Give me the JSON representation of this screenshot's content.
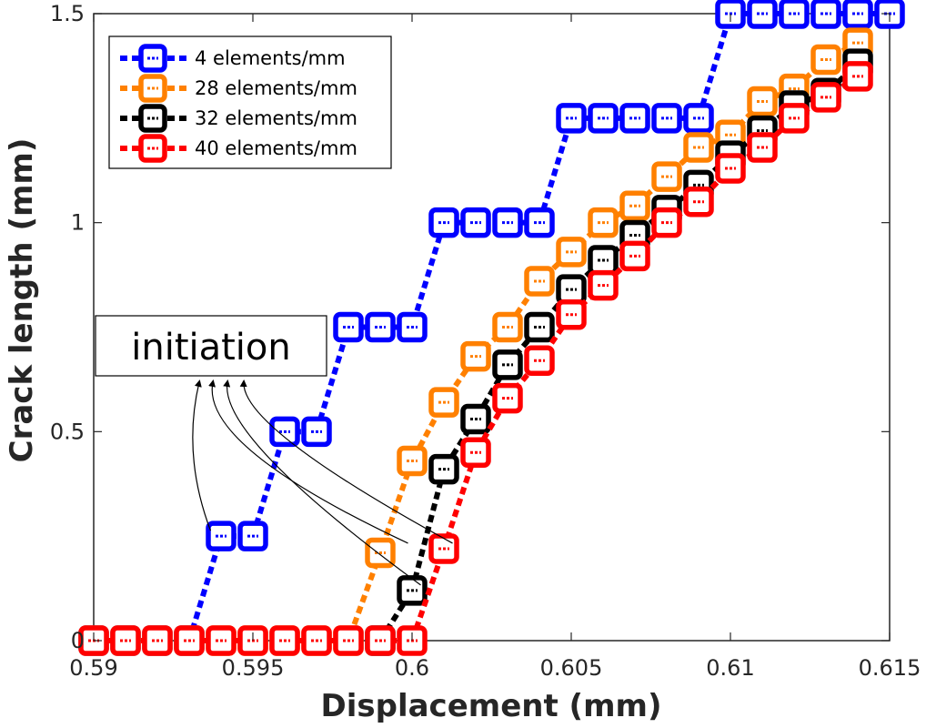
{
  "chart_data": {
    "type": "line",
    "xlabel": "Displacement (mm)",
    "ylabel": "Crack length (mm)",
    "xlim": [
      0.59,
      0.615
    ],
    "ylim": [
      0,
      1.5
    ],
    "xticks": [
      "0.59",
      "0.595",
      "0.6",
      "0.605",
      "0.61",
      "0.615"
    ],
    "yticks": [
      "0",
      "0.5",
      "1",
      "1.5"
    ],
    "legend_position": "top-left",
    "grid": false,
    "series": [
      {
        "name": "4 elements/mm",
        "color": "#0000ff",
        "points": [
          [
            0.59,
            0
          ],
          [
            0.591,
            0
          ],
          [
            0.592,
            0
          ],
          [
            0.593,
            0
          ],
          [
            0.594,
            0.25
          ],
          [
            0.595,
            0.25
          ],
          [
            0.596,
            0.5
          ],
          [
            0.597,
            0.5
          ],
          [
            0.598,
            0.75
          ],
          [
            0.599,
            0.75
          ],
          [
            0.6,
            0.75
          ],
          [
            0.601,
            1.0
          ],
          [
            0.602,
            1.0
          ],
          [
            0.603,
            1.0
          ],
          [
            0.604,
            1.0
          ],
          [
            0.605,
            1.25
          ],
          [
            0.606,
            1.25
          ],
          [
            0.607,
            1.25
          ],
          [
            0.608,
            1.25
          ],
          [
            0.609,
            1.25
          ],
          [
            0.61,
            1.5
          ],
          [
            0.611,
            1.5
          ],
          [
            0.612,
            1.5
          ],
          [
            0.613,
            1.5
          ],
          [
            0.614,
            1.5
          ],
          [
            0.615,
            1.5
          ]
        ]
      },
      {
        "name": "28 elements/mm",
        "color": "#ff8000",
        "points": [
          [
            0.59,
            0
          ],
          [
            0.591,
            0
          ],
          [
            0.592,
            0
          ],
          [
            0.593,
            0
          ],
          [
            0.594,
            0
          ],
          [
            0.595,
            0
          ],
          [
            0.596,
            0
          ],
          [
            0.597,
            0
          ],
          [
            0.598,
            0
          ],
          [
            0.599,
            0.21
          ],
          [
            0.6,
            0.43
          ],
          [
            0.601,
            0.57
          ],
          [
            0.602,
            0.68
          ],
          [
            0.603,
            0.75
          ],
          [
            0.604,
            0.86
          ],
          [
            0.605,
            0.93
          ],
          [
            0.606,
            1.0
          ],
          [
            0.607,
            1.04
          ],
          [
            0.608,
            1.11
          ],
          [
            0.609,
            1.18
          ],
          [
            0.61,
            1.21
          ],
          [
            0.611,
            1.29
          ],
          [
            0.612,
            1.32
          ],
          [
            0.613,
            1.39
          ],
          [
            0.614,
            1.43
          ]
        ]
      },
      {
        "name": "32 elements/mm",
        "color": "#000000",
        "points": [
          [
            0.599,
            0
          ],
          [
            0.6,
            0.12
          ],
          [
            0.601,
            0.41
          ],
          [
            0.602,
            0.53
          ],
          [
            0.603,
            0.66
          ],
          [
            0.604,
            0.75
          ],
          [
            0.605,
            0.84
          ],
          [
            0.606,
            0.91
          ],
          [
            0.607,
            0.97
          ],
          [
            0.608,
            1.03
          ],
          [
            0.609,
            1.09
          ],
          [
            0.61,
            1.16
          ],
          [
            0.611,
            1.22
          ],
          [
            0.612,
            1.28
          ],
          [
            0.613,
            1.31
          ],
          [
            0.614,
            1.38
          ]
        ]
      },
      {
        "name": "40 elements/mm",
        "color": "#ff0000",
        "points": [
          [
            0.59,
            0
          ],
          [
            0.591,
            0
          ],
          [
            0.592,
            0
          ],
          [
            0.593,
            0
          ],
          [
            0.594,
            0
          ],
          [
            0.595,
            0
          ],
          [
            0.596,
            0
          ],
          [
            0.597,
            0
          ],
          [
            0.598,
            0
          ],
          [
            0.599,
            0
          ],
          [
            0.6,
            0
          ],
          [
            0.601,
            0.22
          ],
          [
            0.602,
            0.45
          ],
          [
            0.603,
            0.58
          ],
          [
            0.604,
            0.67
          ],
          [
            0.605,
            0.78
          ],
          [
            0.606,
            0.85
          ],
          [
            0.607,
            0.92
          ],
          [
            0.608,
            1.0
          ],
          [
            0.609,
            1.05
          ],
          [
            0.61,
            1.13
          ],
          [
            0.611,
            1.18
          ],
          [
            0.612,
            1.25
          ],
          [
            0.613,
            1.3
          ],
          [
            0.614,
            1.35
          ]
        ]
      }
    ],
    "annotations": [
      {
        "text": "initiation",
        "arrow_targets": [
          [
            0.5939,
            0.25
          ],
          [
            0.6001,
            0.22
          ],
          [
            0.6005,
            0.12
          ],
          [
            0.6015,
            0.22
          ]
        ]
      }
    ]
  }
}
